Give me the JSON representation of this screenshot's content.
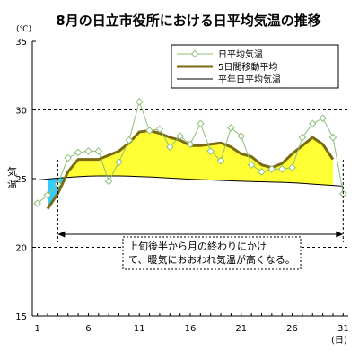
{
  "chart_data": {
    "type": "line",
    "title": "8月の日立市役所における日平均気温の推移",
    "ylabel": "気温",
    "yunit": "(℃)",
    "xunit": "(日)",
    "xlim": [
      0.5,
      31.5
    ],
    "ylim": [
      15,
      35
    ],
    "x_ticks": [
      1,
      6,
      11,
      16,
      21,
      26,
      31
    ],
    "y_ticks": [
      15,
      20,
      25,
      30,
      35
    ],
    "dashed_gridlines": [
      20,
      30
    ],
    "legend_position": "top-right",
    "annotation": "上旬後半から月の終わりにかけ\nて、暖気におおわれ気温が高くなる。",
    "annotation_range": [
      3,
      31
    ],
    "colors": {
      "daily": "#8fbf7a",
      "moving_avg": "#7a6a10",
      "normal": "#000000",
      "above_fill": "#ffff33",
      "below_fill": "#33ccff"
    },
    "x": [
      1,
      2,
      3,
      4,
      5,
      6,
      7,
      8,
      9,
      10,
      11,
      12,
      13,
      14,
      15,
      16,
      17,
      18,
      19,
      20,
      21,
      22,
      23,
      24,
      25,
      26,
      27,
      28,
      29,
      30,
      31
    ],
    "series": [
      {
        "name": "日平均気温",
        "key": "daily",
        "values": [
          23.2,
          23.8,
          24.6,
          26.5,
          26.9,
          27.0,
          27.0,
          24.8,
          26.2,
          27.8,
          30.6,
          28.5,
          28.6,
          27.3,
          28.1,
          27.5,
          29.0,
          27.0,
          26.3,
          28.7,
          28.1,
          26.0,
          25.5,
          25.7,
          25.7,
          25.8,
          28.0,
          29.0,
          29.4,
          28.0,
          23.9
        ]
      },
      {
        "name": "5日間移動平均",
        "key": "moving_avg",
        "values": [
          null,
          22.8,
          23.9,
          25.5,
          26.4,
          26.4,
          26.4,
          26.7,
          27.0,
          27.6,
          28.4,
          28.5,
          28.3,
          28.0,
          27.8,
          27.4,
          27.4,
          27.5,
          27.6,
          27.3,
          26.8,
          26.6,
          26.0,
          25.8,
          26.1,
          26.8,
          27.4,
          28.0,
          27.5,
          26.4,
          null
        ]
      },
      {
        "name": "平年日平均気温",
        "key": "normal",
        "values": [
          24.9,
          24.97,
          25.04,
          25.09,
          25.14,
          25.18,
          25.2,
          25.2,
          25.2,
          25.18,
          25.15,
          25.12,
          25.08,
          25.04,
          25.0,
          24.96,
          24.93,
          24.9,
          24.87,
          24.84,
          24.81,
          24.79,
          24.77,
          24.75,
          24.73,
          24.7,
          24.66,
          24.6,
          24.55,
          24.5,
          24.45
        ]
      }
    ]
  }
}
